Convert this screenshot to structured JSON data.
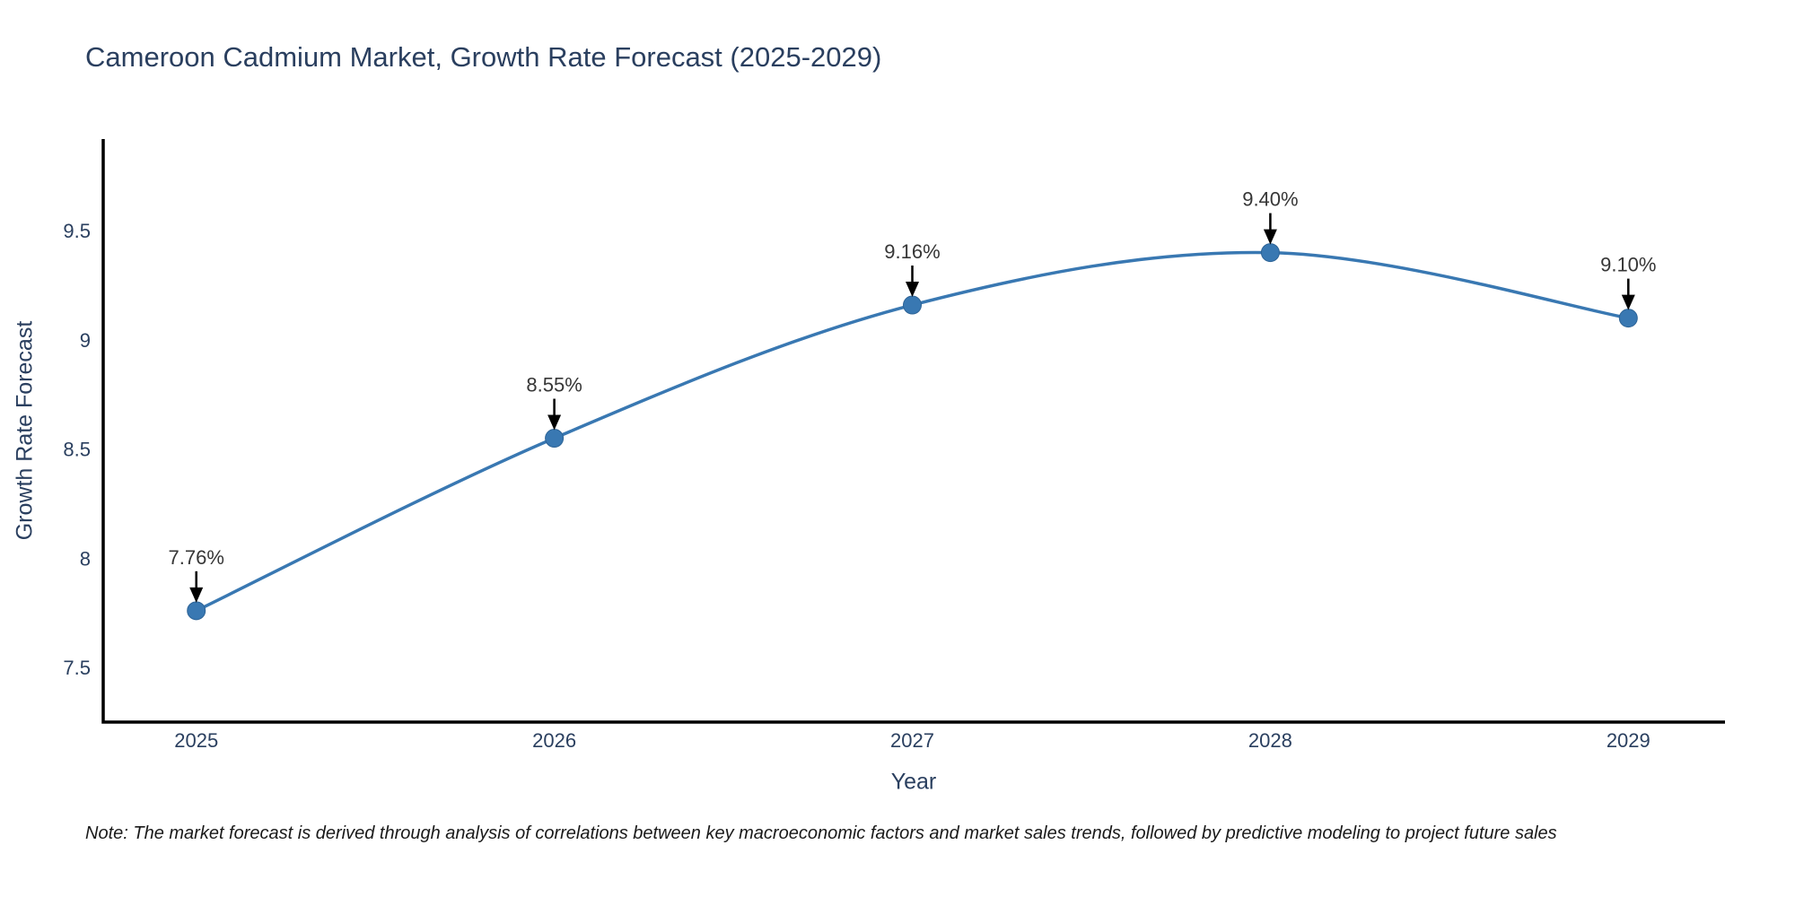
{
  "title": "Cameroon Cadmium Market, Growth Rate Forecast (2025-2029)",
  "note": "Note: The market forecast is derived through analysis of correlations between key macroeconomic factors and market sales trends, followed by predictive modeling to project future sales",
  "chart_data": {
    "type": "line",
    "title": "Cameroon Cadmium Market, Growth Rate Forecast (2025-2029)",
    "xlabel": "Year",
    "ylabel": "Growth Rate Forecast",
    "x": [
      2025,
      2026,
      2027,
      2028,
      2029
    ],
    "values": [
      7.76,
      8.55,
      9.16,
      9.4,
      9.1
    ],
    "point_labels": [
      "7.76%",
      "8.55%",
      "9.16%",
      "9.40%",
      "9.10%"
    ],
    "xticks": [
      2025,
      2026,
      2027,
      2028,
      2029
    ],
    "xtick_labels": [
      "2025",
      "2026",
      "2027",
      "2028",
      "2029"
    ],
    "yticks": [
      7.5,
      8,
      8.5,
      9,
      9.5
    ],
    "ytick_labels": [
      "7.5",
      "8",
      "8.5",
      "9",
      "9.5"
    ],
    "xlim": [
      2024.74,
      2029.27
    ],
    "ylim": [
      7.25,
      9.92
    ],
    "grid": false,
    "legend": false,
    "line_shape": "spline",
    "colors": {
      "line": "#3978b2",
      "marker_fill": "#3978b2",
      "marker_edge": "#2d6396",
      "axis": "#000000",
      "heading_text": "#2a3f5f",
      "annotation_text": "#363636",
      "arrow": "#000000",
      "note_text": "#1a1a1a",
      "background": "#ffffff"
    }
  }
}
